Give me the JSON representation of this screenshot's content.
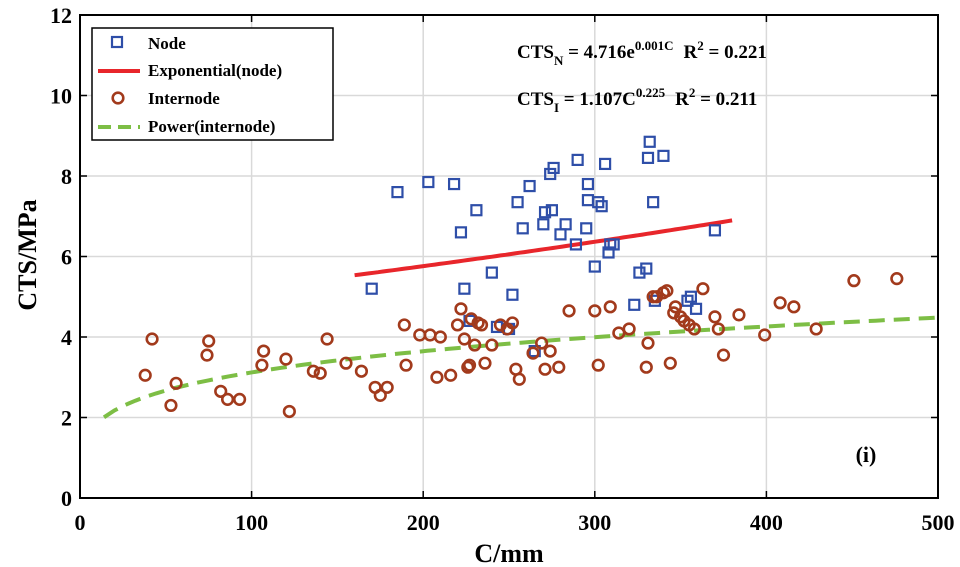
{
  "chart_data": {
    "type": "scatter",
    "title": "",
    "xlabel": "C/mm",
    "ylabel": "CTS/MPa",
    "xlim": [
      0,
      500
    ],
    "ylim": [
      0,
      12
    ],
    "xticks": [
      0,
      100,
      200,
      300,
      400,
      500
    ],
    "yticks": [
      0,
      2,
      4,
      6,
      8,
      10,
      12
    ],
    "grid": true,
    "panel_label": "(i)",
    "legend_position": "top-left",
    "legend": [
      {
        "label": "Node",
        "kind": "square",
        "color": "#2e4ea8"
      },
      {
        "label": "Exponential(node)",
        "kind": "line",
        "color": "#e8262b"
      },
      {
        "label": "Internode",
        "kind": "circle",
        "color": "#a23a1c"
      },
      {
        "label": "Power(internode)",
        "kind": "dash",
        "color": "#7dbe45"
      }
    ],
    "equations": [
      {
        "lhs": "CTS",
        "sub": "N",
        "mid": " = 4.716e",
        "sup": "0.001C",
        "r2_label": "R",
        "r2_sup": "2",
        "r2_value": " = 0.221"
      },
      {
        "lhs": "CTS",
        "sub": "I",
        "mid": " = 1.107C",
        "sup": "0.225",
        "r2_label": "R",
        "r2_sup": "2",
        "r2_value": " = 0.211"
      }
    ],
    "series": [
      {
        "name": "Node",
        "marker": "square",
        "color": "#2e4ea8",
        "x": [
          170,
          185,
          203,
          218,
          222,
          224,
          227,
          231,
          240,
          243,
          250,
          252,
          255,
          258,
          262,
          265,
          270,
          271,
          274,
          275,
          276,
          280,
          283,
          289,
          290,
          295,
          296,
          296,
          300,
          302,
          304,
          306,
          308,
          309,
          311,
          323,
          326,
          330,
          331,
          332,
          334,
          335,
          340,
          354,
          356,
          359,
          370
        ],
        "y": [
          5.2,
          7.6,
          7.85,
          7.8,
          6.6,
          5.2,
          4.4,
          7.15,
          5.6,
          4.25,
          4.2,
          5.05,
          7.35,
          6.7,
          7.75,
          3.65,
          6.8,
          7.1,
          8.05,
          7.15,
          8.2,
          6.55,
          6.8,
          6.3,
          8.4,
          6.7,
          7.8,
          7.4,
          5.75,
          7.35,
          7.25,
          8.3,
          6.1,
          6.3,
          6.3,
          4.8,
          5.6,
          5.7,
          8.45,
          8.85,
          7.35,
          4.9,
          8.5,
          4.9,
          5.0,
          4.7,
          6.65
        ]
      },
      {
        "name": "Internode",
        "marker": "circle",
        "color": "#a23a1c",
        "x": [
          38,
          42,
          53,
          56,
          74,
          75,
          82,
          86,
          93,
          106,
          107,
          120,
          122,
          136,
          140,
          144,
          155,
          164,
          172,
          175,
          179,
          189,
          190,
          198,
          204,
          208,
          210,
          216,
          220,
          222,
          224,
          226,
          227,
          228,
          230,
          232,
          234,
          236,
          240,
          245,
          249,
          252,
          254,
          256,
          264,
          269,
          271,
          274,
          279,
          285,
          300,
          302,
          309,
          314,
          320,
          330,
          331,
          334,
          336,
          340,
          342,
          344,
          346,
          347,
          350,
          352,
          355,
          358,
          363,
          370,
          372,
          375,
          384,
          399,
          408,
          416,
          429,
          451,
          476
        ],
        "y": [
          3.05,
          3.95,
          2.3,
          2.85,
          3.55,
          3.9,
          2.65,
          2.45,
          2.45,
          3.3,
          3.65,
          3.45,
          2.15,
          3.15,
          3.1,
          3.95,
          3.35,
          3.15,
          2.75,
          2.55,
          2.75,
          4.3,
          3.3,
          4.05,
          4.05,
          3.0,
          4.0,
          3.05,
          4.3,
          4.7,
          3.95,
          3.25,
          3.3,
          4.45,
          3.8,
          4.35,
          4.3,
          3.35,
          3.8,
          4.3,
          4.2,
          4.35,
          3.2,
          2.95,
          3.6,
          3.85,
          3.2,
          3.65,
          3.25,
          4.65,
          4.65,
          3.3,
          4.75,
          4.1,
          4.2,
          3.25,
          3.85,
          5.0,
          5.0,
          5.1,
          5.15,
          3.35,
          4.6,
          4.75,
          4.5,
          4.4,
          4.3,
          4.2,
          5.2,
          4.5,
          4.2,
          3.55,
          4.55,
          4.05,
          4.85,
          4.75,
          4.2,
          5.4,
          5.45
        ]
      }
    ],
    "fits": [
      {
        "name": "Exponential(node)",
        "model": "exponential",
        "a": 4.716,
        "b": 0.001,
        "x_range": [
          160,
          380
        ],
        "color": "#e8262b",
        "style": "solid"
      },
      {
        "name": "Power(internode)",
        "model": "power",
        "a": 1.107,
        "b": 0.225,
        "x_range": [
          14,
          500
        ],
        "color": "#7dbe45",
        "style": "dashed"
      }
    ]
  }
}
